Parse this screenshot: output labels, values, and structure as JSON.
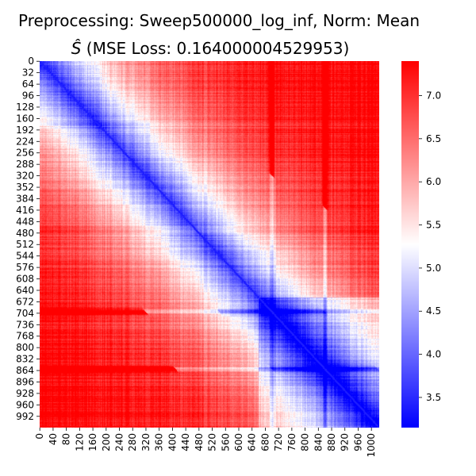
{
  "chart_data": {
    "type": "heatmap",
    "title_line1": "Preprocessing: Sweep500000_log_inf, Norm: Mean",
    "title_line2_symbol": "Ŝ",
    "title_line2_text": "(MSE Loss: 0.164000004529953)",
    "n": 1024,
    "x_range": [
      0,
      1023
    ],
    "y_range": [
      0,
      1023
    ],
    "y_tick_labels": [
      "0",
      "32",
      "64",
      "96",
      "128",
      "160",
      "192",
      "224",
      "256",
      "288",
      "320",
      "352",
      "384",
      "416",
      "448",
      "480",
      "512",
      "544",
      "576",
      "608",
      "640",
      "672",
      "704",
      "736",
      "768",
      "800",
      "832",
      "864",
      "896",
      "928",
      "960",
      "992"
    ],
    "x_tick_labels": [
      "0",
      "40",
      "80",
      "120",
      "160",
      "200",
      "240",
      "280",
      "320",
      "360",
      "400",
      "440",
      "480",
      "520",
      "560",
      "600",
      "640",
      "680",
      "720",
      "760",
      "800",
      "840",
      "880",
      "920",
      "960",
      "1000"
    ],
    "colorbar": {
      "vmin": 3.15,
      "vmax": 7.4,
      "center": 5.3,
      "tick_labels": [
        "3.5",
        "4.0",
        "4.5",
        "5.0",
        "5.5",
        "6.0",
        "6.5",
        "7.0"
      ],
      "colors": {
        "low": "#0000ff",
        "mid": "#ffffff",
        "high": "#ff0000"
      }
    },
    "diagonal_value": 3.4,
    "dark_bands": [
      700,
      860
    ],
    "grid": false,
    "legend": "colorbar-right"
  }
}
